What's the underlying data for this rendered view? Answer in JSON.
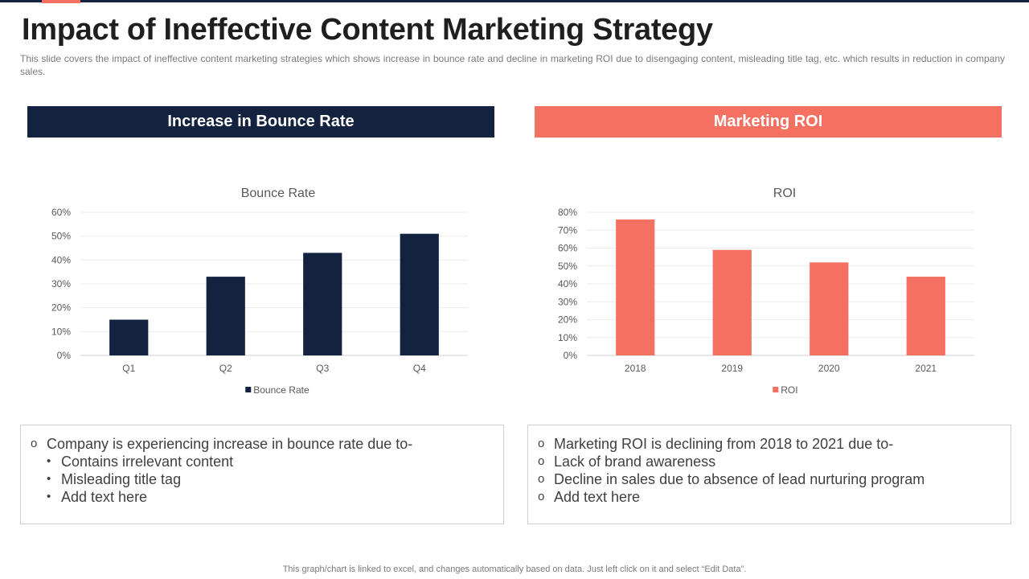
{
  "title": "Impact of Ineffective Content Marketing Strategy",
  "subtitle": "This slide covers the impact of ineffective  content marketing strategies which shows increase in bounce rate and decline in marketing ROI due to disengaging content, misleading title tag, etc. which results in reduction in company sales.",
  "colors": {
    "navy": "#13223f",
    "coral": "#f47060"
  },
  "panels": {
    "left": {
      "header": "Increase in Bounce Rate",
      "bullets": [
        {
          "marker": "o",
          "text": "Company is experiencing increase in bounce rate due to-",
          "level": 1
        },
        {
          "marker": "•",
          "text": "Contains irrelevant content",
          "level": 2
        },
        {
          "marker": "•",
          "text": "Misleading title tag",
          "level": 2
        },
        {
          "marker": "•",
          "text": "Add text here",
          "level": 2
        }
      ]
    },
    "right": {
      "header": "Marketing ROI",
      "bullets": [
        {
          "marker": "o",
          "text": "Marketing ROI is declining from 2018 to 2021 due to-",
          "level": 1
        },
        {
          "marker": "o",
          "text": "Lack of brand awareness",
          "level": 1
        },
        {
          "marker": "o",
          "text": "Decline in sales due to absence of lead nurturing program",
          "level": 1
        },
        {
          "marker": "o",
          "text": "Add text here",
          "level": 1
        }
      ]
    }
  },
  "chart_data": [
    {
      "type": "bar",
      "title": "Bounce Rate",
      "categories": [
        "Q1",
        "Q2",
        "Q3",
        "Q4"
      ],
      "series": [
        {
          "name": "Bounce Rate",
          "values": [
            15,
            33,
            43,
            51
          ]
        }
      ],
      "ylim": [
        0,
        60
      ],
      "yticks": [
        0,
        10,
        20,
        30,
        40,
        50,
        60
      ],
      "ytick_labels": [
        "0%",
        "10%",
        "20%",
        "30%",
        "40%",
        "50%",
        "60%"
      ],
      "legend": "bottom",
      "color": "#13223f"
    },
    {
      "type": "bar",
      "title": "ROI",
      "categories": [
        "2018",
        "2019",
        "2020",
        "2021"
      ],
      "series": [
        {
          "name": "ROI",
          "values": [
            76,
            59,
            52,
            44
          ]
        }
      ],
      "ylim": [
        0,
        80
      ],
      "yticks": [
        0,
        10,
        20,
        30,
        40,
        50,
        60,
        70,
        80
      ],
      "ytick_labels": [
        "0%",
        "10%",
        "20%",
        "30%",
        "40%",
        "50%",
        "60%",
        "70%",
        "80%"
      ],
      "legend": "bottom",
      "color": "#f47060"
    }
  ],
  "footer": "This graph/chart is linked to excel,  and changes automatically based on data. Just left click on it and select “Edit Data”."
}
